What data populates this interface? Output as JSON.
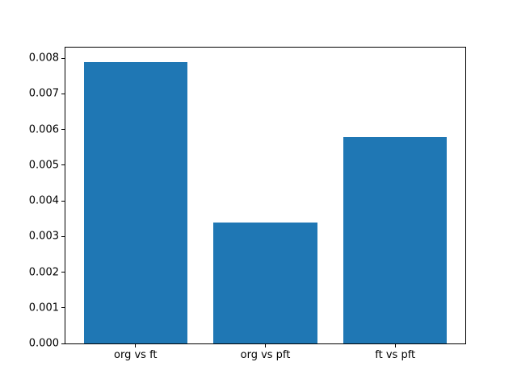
{
  "chart_data": {
    "type": "bar",
    "title": "",
    "xlabel": "",
    "ylabel": "",
    "categories": [
      "org vs ft",
      "org vs pft",
      "ft vs pft"
    ],
    "values": [
      0.0079,
      0.0034,
      0.0058
    ],
    "ylim": [
      0,
      0.0083
    ],
    "xlim": [
      -0.54,
      2.54
    ],
    "yticks": [
      0,
      0.001,
      0.002,
      0.003,
      0.004,
      0.005,
      0.006,
      0.007,
      0.008
    ],
    "ytick_labels": [
      "0.000",
      "0.001",
      "0.002",
      "0.003",
      "0.004",
      "0.005",
      "0.006",
      "0.007",
      "0.008"
    ],
    "bar_width": 0.8,
    "bar_color": "#1f77b4",
    "spine_color": "#000000",
    "background_color": "#ffffff",
    "grid": false,
    "legend": null
  }
}
